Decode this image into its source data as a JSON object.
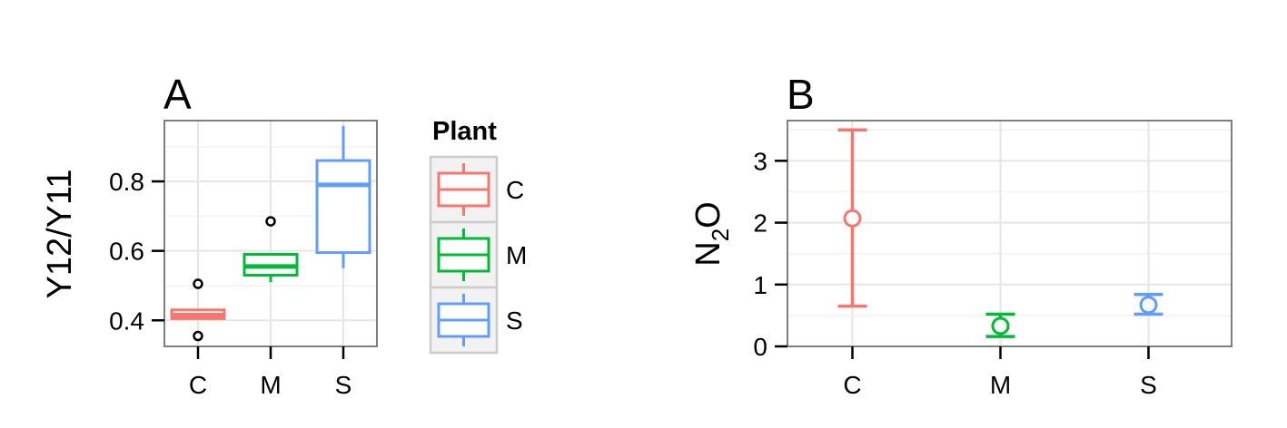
{
  "chart_data": [
    {
      "type": "box",
      "panel": "A",
      "ylabel": "Y12/Y11",
      "ylim": [
        0.325,
        0.975
      ],
      "yticks": [
        0.4,
        0.6,
        0.8
      ],
      "categories": [
        "C",
        "M",
        "S"
      ],
      "colors": [
        "#F8766D",
        "#00BA38",
        "#619CFF"
      ],
      "boxes": [
        {
          "category": "C",
          "whisker_low": 0.405,
          "q1": 0.405,
          "median": 0.415,
          "q3": 0.43,
          "whisker_high": 0.43,
          "outliers": [
            0.505,
            0.355
          ]
        },
        {
          "category": "M",
          "whisker_low": 0.51,
          "q1": 0.53,
          "median": 0.555,
          "q3": 0.59,
          "whisker_high": 0.59,
          "outliers": [
            0.685
          ]
        },
        {
          "category": "S",
          "whisker_low": 0.55,
          "q1": 0.595,
          "median": 0.79,
          "q3": 0.86,
          "whisker_high": 0.96,
          "outliers": []
        }
      ],
      "legend": {
        "title": "Plant",
        "entries": [
          "C",
          "M",
          "S"
        ],
        "placement": "right"
      },
      "grid": true
    },
    {
      "type": "errorbar",
      "panel": "B",
      "ylabel_main": "N",
      "ylabel_sub": "2",
      "ylabel_tail": "O",
      "ylim": [
        0,
        3.65
      ],
      "yticks": [
        0,
        1,
        2,
        3
      ],
      "categories": [
        "C",
        "M",
        "S"
      ],
      "colors": [
        "#F8766D",
        "#00BA38",
        "#619CFF"
      ],
      "points": [
        {
          "category": "C",
          "mean": 2.07,
          "low": 0.65,
          "high": 3.5
        },
        {
          "category": "M",
          "mean": 0.33,
          "low": 0.16,
          "high": 0.52
        },
        {
          "category": "S",
          "mean": 0.67,
          "low": 0.52,
          "high": 0.84
        }
      ],
      "grid": true
    }
  ]
}
